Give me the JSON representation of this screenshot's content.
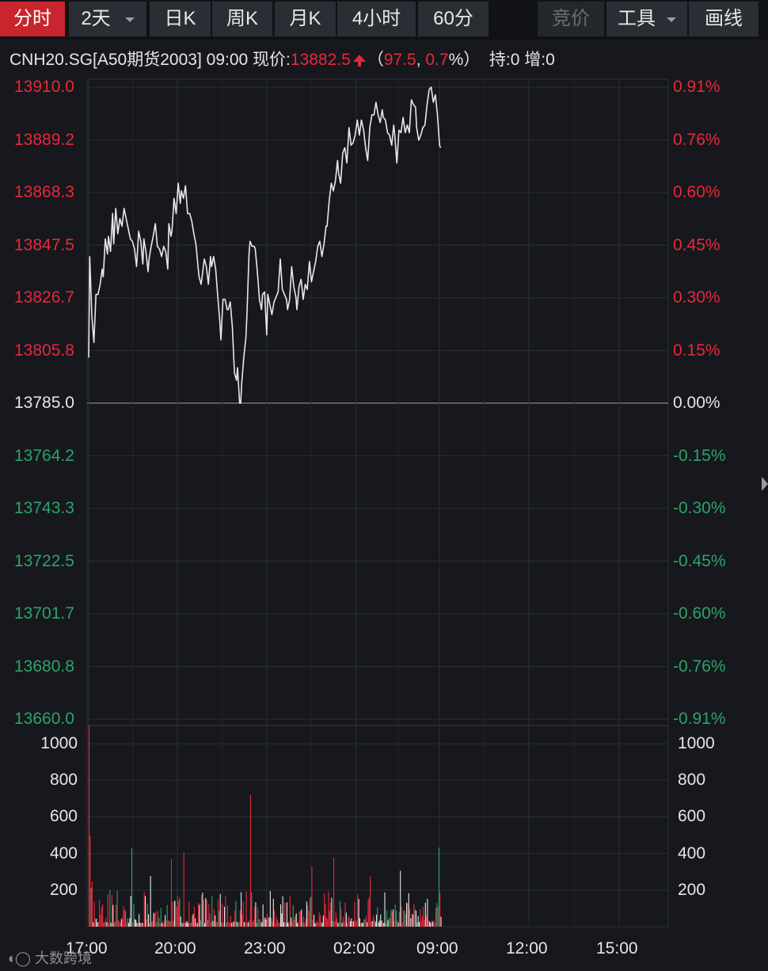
{
  "toolbar": {
    "items": [
      {
        "label": "分时",
        "active": true
      },
      {
        "label": "2天",
        "dropdown": true
      },
      {
        "label": "日K"
      },
      {
        "label": "周K"
      },
      {
        "label": "月K"
      },
      {
        "label": "4小时"
      },
      {
        "label": "60分"
      },
      {
        "label": "竞价",
        "disabled": true
      },
      {
        "label": "工具",
        "dropdown": true
      },
      {
        "label": "画线"
      }
    ]
  },
  "info": {
    "symbol": "CNH20.SG[A50期货2003]",
    "time": "09:00",
    "price_label": "现价:",
    "price": "13882.5",
    "open_paren": "（",
    "change": "97.5",
    "sep": ", ",
    "change_pct": "0.7",
    "pct_sign": "%）",
    "hold": "持:0",
    "incr": "增:0"
  },
  "colors": {
    "up": "#e8283a",
    "down": "#2ea26a",
    "neutral": "#e6e6e6",
    "price_line": "#e8e8e8",
    "grid": "#2b2e34"
  },
  "chart_data": {
    "type": "line",
    "title": "",
    "base_price": 13785.0,
    "ylim": [
      13660.0,
      13910.0
    ],
    "y_ticks_left": [
      "13910.0",
      "13889.2",
      "13868.3",
      "13847.5",
      "13826.7",
      "13805.8",
      "13785.0",
      "13764.2",
      "13743.3",
      "13722.5",
      "13701.7",
      "13680.8",
      "13660.0"
    ],
    "y_ticks_right": [
      "0.91%",
      "0.76%",
      "0.60%",
      "0.45%",
      "0.30%",
      "0.15%",
      "0.00%",
      "-0.15%",
      "-0.30%",
      "-0.45%",
      "-0.60%",
      "-0.76%",
      "-0.91%"
    ],
    "x_ticks": [
      "17:00",
      "20:00",
      "23:00",
      "02:00",
      "09:00",
      "12:00",
      "15:00"
    ],
    "price_series": {
      "name": "",
      "points": [
        [
          0,
          13803
        ],
        [
          1,
          13843
        ],
        [
          3,
          13820
        ],
        [
          5,
          13809
        ],
        [
          7,
          13828
        ],
        [
          9,
          13828
        ],
        [
          11,
          13832
        ],
        [
          13,
          13838
        ],
        [
          14,
          13835
        ],
        [
          16,
          13850
        ],
        [
          18,
          13844
        ],
        [
          19,
          13851
        ],
        [
          21,
          13845
        ],
        [
          23,
          13860
        ],
        [
          24,
          13848
        ],
        [
          26,
          13862
        ],
        [
          28,
          13852
        ],
        [
          30,
          13858
        ],
        [
          32,
          13855
        ],
        [
          34,
          13862
        ],
        [
          36,
          13858
        ],
        [
          38,
          13854
        ],
        [
          40,
          13850
        ],
        [
          42,
          13849
        ],
        [
          44,
          13846
        ],
        [
          46,
          13839
        ],
        [
          48,
          13853
        ],
        [
          50,
          13849
        ],
        [
          52,
          13840
        ],
        [
          53,
          13850
        ],
        [
          55,
          13845
        ],
        [
          57,
          13837
        ],
        [
          58,
          13842
        ],
        [
          60,
          13847
        ],
        [
          62,
          13851
        ],
        [
          64,
          13856
        ],
        [
          66,
          13847
        ],
        [
          68,
          13846
        ],
        [
          70,
          13843
        ],
        [
          72,
          13847
        ],
        [
          74,
          13845
        ],
        [
          76,
          13838
        ],
        [
          77,
          13856
        ],
        [
          79,
          13851
        ],
        [
          80,
          13853
        ],
        [
          82,
          13866
        ],
        [
          84,
          13860
        ],
        [
          86,
          13872
        ],
        [
          88,
          13864
        ],
        [
          89,
          13869
        ],
        [
          91,
          13866
        ],
        [
          93,
          13871
        ],
        [
          95,
          13860
        ],
        [
          97,
          13860
        ],
        [
          99,
          13857
        ],
        [
          101,
          13852
        ],
        [
          103,
          13848
        ],
        [
          105,
          13839
        ],
        [
          106,
          13835
        ],
        [
          108,
          13832
        ],
        [
          109,
          13835
        ],
        [
          111,
          13842
        ],
        [
          113,
          13839
        ],
        [
          115,
          13832
        ],
        [
          117,
          13843
        ],
        [
          118,
          13839
        ],
        [
          120,
          13843
        ],
        [
          122,
          13838
        ],
        [
          124,
          13827
        ],
        [
          126,
          13817
        ],
        [
          127,
          13810
        ],
        [
          129,
          13826
        ],
        [
          131,
          13826
        ],
        [
          133,
          13822
        ],
        [
          134,
          13822
        ],
        [
          136,
          13825
        ],
        [
          138,
          13815
        ],
        [
          140,
          13797
        ],
        [
          142,
          13794
        ],
        [
          143,
          13799
        ],
        [
          145,
          13785
        ],
        [
          146,
          13785
        ],
        [
          147,
          13793
        ],
        [
          149,
          13803
        ],
        [
          151,
          13811
        ],
        [
          152,
          13820
        ],
        [
          154,
          13844
        ],
        [
          155,
          13849
        ],
        [
          157,
          13847
        ],
        [
          159,
          13847
        ],
        [
          160,
          13846
        ],
        [
          162,
          13837
        ],
        [
          164,
          13826
        ],
        [
          166,
          13822
        ],
        [
          167,
          13828
        ],
        [
          169,
          13829
        ],
        [
          171,
          13812
        ],
        [
          172,
          13828
        ],
        [
          174,
          13824
        ],
        [
          176,
          13820
        ],
        [
          178,
          13825
        ],
        [
          180,
          13827
        ],
        [
          182,
          13829
        ],
        [
          184,
          13842
        ],
        [
          186,
          13830
        ],
        [
          188,
          13828
        ],
        [
          190,
          13826
        ],
        [
          191,
          13822
        ],
        [
          193,
          13826
        ],
        [
          195,
          13839
        ],
        [
          197,
          13831
        ],
        [
          199,
          13827
        ],
        [
          200,
          13822
        ],
        [
          202,
          13831
        ],
        [
          204,
          13834
        ],
        [
          206,
          13826
        ],
        [
          208,
          13832
        ],
        [
          210,
          13830
        ],
        [
          212,
          13841
        ],
        [
          214,
          13833
        ],
        [
          216,
          13837
        ],
        [
          218,
          13841
        ],
        [
          220,
          13847
        ],
        [
          222,
          13849
        ],
        [
          224,
          13843
        ],
        [
          226,
          13848
        ],
        [
          228,
          13855
        ],
        [
          229,
          13855
        ],
        [
          231,
          13865
        ],
        [
          233,
          13872
        ],
        [
          235,
          13869
        ],
        [
          237,
          13873
        ],
        [
          239,
          13881
        ],
        [
          240,
          13876
        ],
        [
          242,
          13872
        ],
        [
          244,
          13884
        ],
        [
          246,
          13886
        ],
        [
          248,
          13880
        ],
        [
          250,
          13894
        ],
        [
          252,
          13887
        ],
        [
          254,
          13888
        ],
        [
          256,
          13891
        ],
        [
          258,
          13897
        ],
        [
          260,
          13891
        ],
        [
          262,
          13897
        ],
        [
          264,
          13893
        ],
        [
          266,
          13886
        ],
        [
          268,
          13881
        ],
        [
          270,
          13894
        ],
        [
          272,
          13899
        ],
        [
          274,
          13899
        ],
        [
          276,
          13904
        ],
        [
          278,
          13899
        ],
        [
          280,
          13896
        ],
        [
          282,
          13901
        ],
        [
          283,
          13898
        ],
        [
          285,
          13897
        ],
        [
          287,
          13892
        ],
        [
          289,
          13891
        ],
        [
          291,
          13887
        ],
        [
          293,
          13895
        ],
        [
          294,
          13891
        ],
        [
          296,
          13880
        ],
        [
          298,
          13893
        ],
        [
          300,
          13892
        ],
        [
          302,
          13898
        ],
        [
          304,
          13892
        ],
        [
          306,
          13895
        ],
        [
          308,
          13892
        ],
        [
          310,
          13905
        ],
        [
          312,
          13903
        ],
        [
          314,
          13902
        ],
        [
          315,
          13894
        ],
        [
          317,
          13889
        ],
        [
          319,
          13891
        ],
        [
          321,
          13894
        ],
        [
          323,
          13895
        ],
        [
          325,
          13903
        ],
        [
          327,
          13909
        ],
        [
          329,
          13910
        ],
        [
          331,
          13904
        ],
        [
          333,
          13907
        ],
        [
          335,
          13899
        ],
        [
          337,
          13887
        ],
        [
          338,
          13886
        ]
      ]
    },
    "volume": {
      "ylim": [
        0,
        1100
      ],
      "ticks": [
        "1000",
        "800",
        "600",
        "400",
        "200"
      ],
      "seed": 20
    }
  },
  "watermark": "大数跨境"
}
